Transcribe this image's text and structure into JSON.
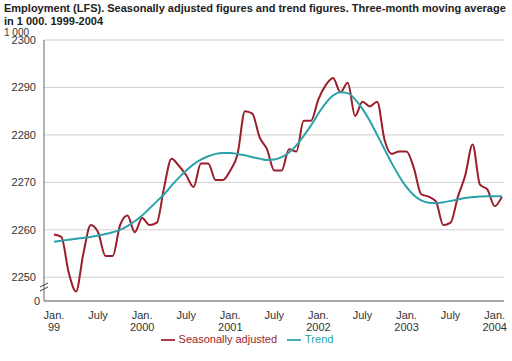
{
  "chart_data": {
    "type": "line",
    "title": "Employment (LFS). Seasonally adjusted figures and trend figures. Three-month moving average in 1 000. 1999-2004",
    "y_unit_label": "1 000",
    "axis_break_tick": 0,
    "categories": [
      "Jan. 99",
      null,
      null,
      null,
      null,
      null,
      "July",
      null,
      null,
      null,
      null,
      null,
      "Jan. 2000",
      null,
      null,
      null,
      null,
      null,
      "July",
      null,
      null,
      null,
      null,
      null,
      "Jan. 2001",
      null,
      null,
      null,
      null,
      null,
      "July",
      null,
      null,
      null,
      null,
      null,
      "Jan. 2002",
      null,
      null,
      null,
      null,
      null,
      "July",
      null,
      null,
      null,
      null,
      null,
      "Jan. 2003",
      null,
      null,
      null,
      null,
      null,
      "July",
      null,
      null,
      null,
      null,
      null,
      "Jan. 2004",
      null
    ],
    "series": [
      {
        "name": "Seasonally adjusted",
        "color": "#9b1c2a",
        "values": [
          2259,
          2258.5,
          2251,
          2247,
          2255,
          2261,
          2259.5,
          2254.5,
          2254.5,
          2261,
          2263,
          2259.5,
          2262.5,
          2261,
          2261.5,
          2269,
          2275,
          2273.5,
          2271.5,
          2269,
          2274,
          2274,
          2270.5,
          2270.5,
          2272.5,
          2276,
          2285,
          2284.5,
          2279.5,
          2277,
          2272.5,
          2272.5,
          2277,
          2276.5,
          2283,
          2283,
          2287.5,
          2290.5,
          2292,
          2289,
          2291,
          2284,
          2287,
          2286,
          2287,
          2279,
          2276,
          2276.5,
          2276.5,
          2273,
          2267.5,
          2267,
          2266,
          2261,
          2261.5,
          2267,
          2271.5,
          2278,
          2269.5,
          2268.5,
          2265,
          2267
        ]
      },
      {
        "name": "Trend",
        "color": "#2aa3a8",
        "values": [
          2257.5,
          2257.7,
          2257.9,
          2258.1,
          2258.3,
          2258.5,
          2258.8,
          2259.1,
          2259.5,
          2260,
          2260.8,
          2261.8,
          2263,
          2264.5,
          2266,
          2267.5,
          2269.3,
          2271,
          2272.5,
          2273.8,
          2274.8,
          2275.5,
          2276,
          2276.2,
          2276.2,
          2276,
          2275.7,
          2275.3,
          2275,
          2274.7,
          2274.8,
          2275.3,
          2276.3,
          2277.8,
          2279.8,
          2282,
          2284.5,
          2286.7,
          2288.3,
          2289,
          2288.8,
          2287.5,
          2285.5,
          2283,
          2280,
          2277,
          2274,
          2271.3,
          2269,
          2267.3,
          2266.2,
          2265.7,
          2265.6,
          2265.8,
          2266.1,
          2266.4,
          2266.7,
          2266.9,
          2267,
          2267.1,
          2267.1,
          2267.1
        ]
      }
    ],
    "ylim": [
      2245,
      2300
    ],
    "yticks": [
      2250,
      2260,
      2270,
      2280,
      2290,
      2300
    ],
    "grid": true,
    "legend": "bottom"
  }
}
